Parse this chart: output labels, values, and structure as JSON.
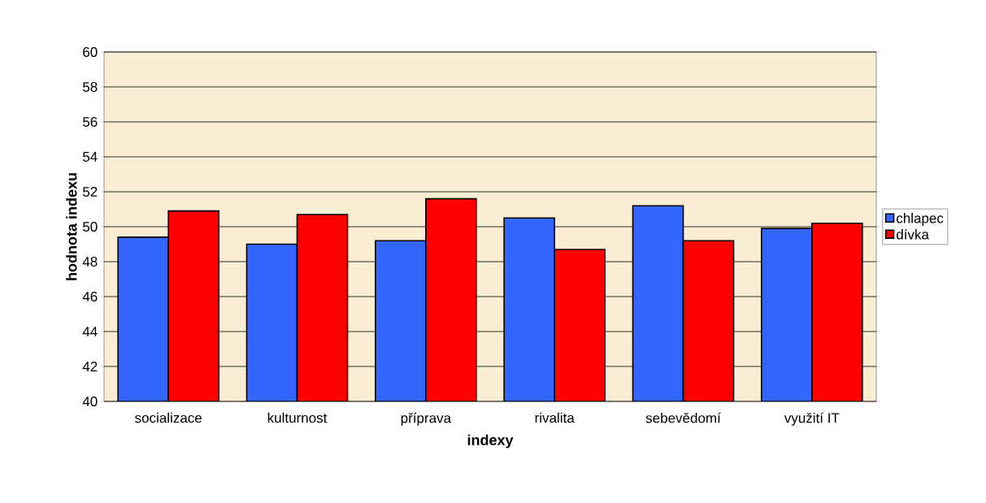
{
  "chart_data": {
    "type": "bar",
    "xlabel": "indexy",
    "ylabel": "hodnota indexu",
    "categories": [
      "socializace",
      "kulturnost",
      "příprava",
      "rivalita",
      "sebevědomí",
      "využití IT"
    ],
    "series": [
      {
        "name": "chlapec",
        "color": "#3366ff",
        "values": [
          49.4,
          49.0,
          49.2,
          50.5,
          51.2,
          49.9
        ]
      },
      {
        "name": "dívka",
        "color": "#ff0000",
        "values": [
          50.9,
          50.7,
          51.6,
          48.7,
          49.2,
          50.2
        ]
      }
    ],
    "ylim": [
      40,
      60
    ],
    "yticks": [
      40,
      42,
      44,
      46,
      48,
      50,
      52,
      54,
      56,
      58,
      60
    ],
    "grid": "y",
    "legend": "right"
  }
}
